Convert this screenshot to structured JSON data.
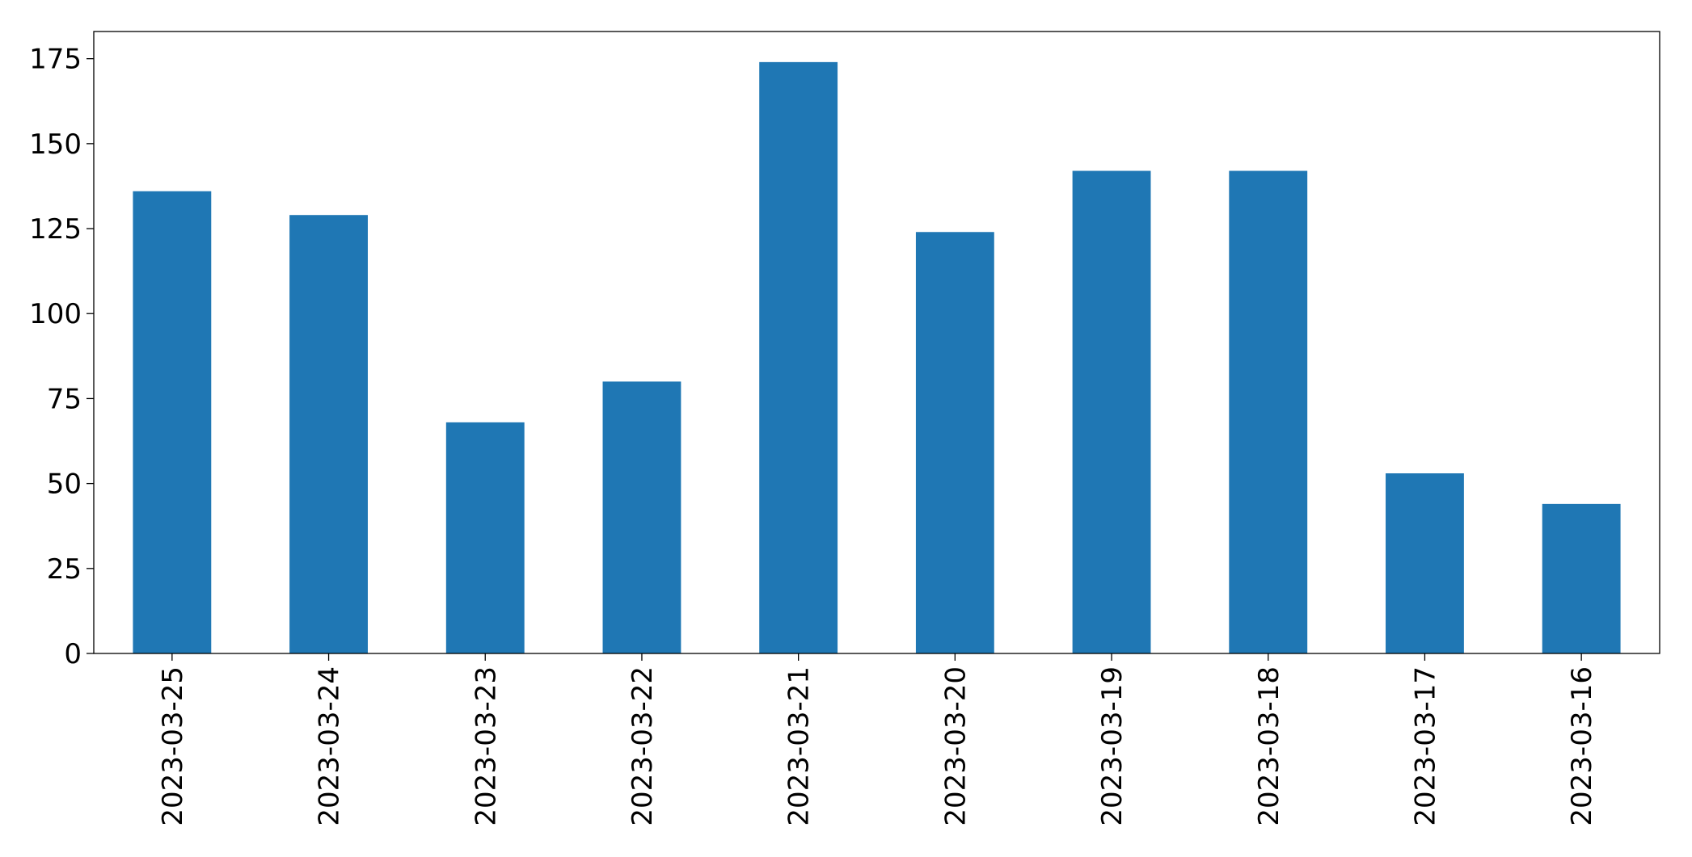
{
  "chart_data": {
    "type": "bar",
    "categories": [
      "2023-03-25",
      "2023-03-24",
      "2023-03-23",
      "2023-03-22",
      "2023-03-21",
      "2023-03-20",
      "2023-03-19",
      "2023-03-18",
      "2023-03-17",
      "2023-03-16"
    ],
    "values": [
      136,
      129,
      68,
      80,
      174,
      124,
      142,
      142,
      53,
      44
    ],
    "color": "#1f77b4",
    "ylim": [
      0,
      183
    ],
    "yticks": [
      0,
      25,
      50,
      75,
      100,
      125,
      150,
      175
    ],
    "grid": false
  }
}
